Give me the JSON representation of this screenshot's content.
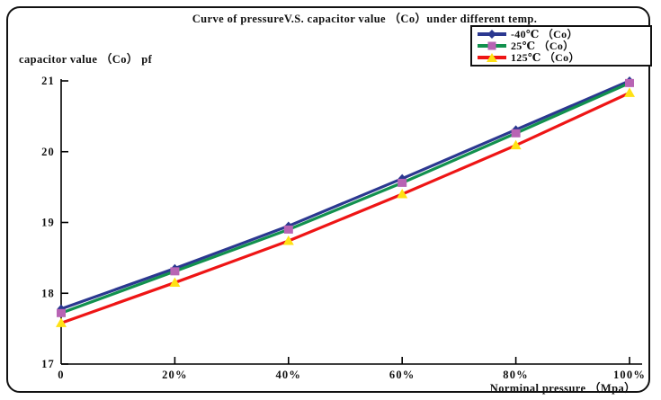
{
  "window": {
    "background": "#ffffff",
    "frame_border_color": "#111111"
  },
  "title": "Curve of pressureV.S. capacitor value （Co）under different temp.",
  "axis_labels": {
    "y": "capacitor value （Co） pf",
    "x": "Norminal pressure （Mpa）"
  },
  "legend": {
    "border_color": "#111111",
    "position": "top-right"
  },
  "chart_data": {
    "type": "line",
    "title": "Curve of pressureV.S. capacitor value （Co）under different temp.",
    "xlabel": "Norminal pressure （Mpa）",
    "ylabel": "capacitor value （Co） pf",
    "categories": [
      "0",
      "20%",
      "40%",
      "60%",
      "80%",
      "100%"
    ],
    "series": [
      {
        "name": "-40℃ （Co）",
        "color": "#2B3890",
        "marker": "diamond",
        "marker_color": "#2B3890",
        "values": [
          17.78,
          18.35,
          18.95,
          19.62,
          20.31,
          21.0
        ]
      },
      {
        "name": "25℃ （Co）",
        "color": "#12914E",
        "marker": "square",
        "marker_color": "#B864B4",
        "values": [
          17.72,
          18.31,
          18.9,
          19.56,
          20.26,
          20.97
        ]
      },
      {
        "name": "125℃ （Co）",
        "color": "#EE1515",
        "marker": "triangle",
        "marker_color": "#FFE115",
        "values": [
          17.58,
          18.15,
          18.74,
          19.4,
          20.09,
          20.83
        ]
      }
    ],
    "ylim": [
      17,
      21
    ],
    "y_ticks": [
      21,
      20,
      19,
      18,
      17
    ],
    "grid": false,
    "legend_position": "top-right",
    "axis_color": "#000000",
    "text_color": "#111111"
  }
}
